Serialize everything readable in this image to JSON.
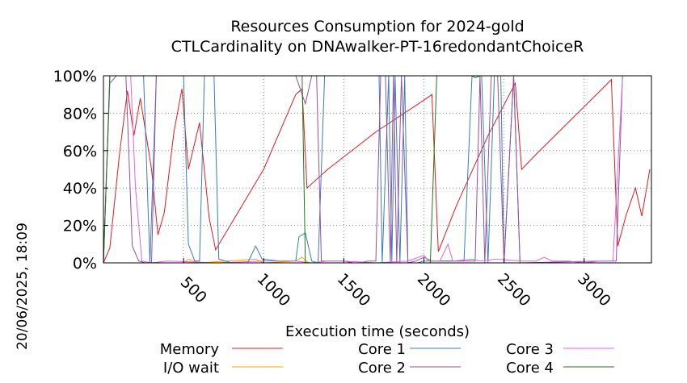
{
  "chart_data": {
    "type": "line",
    "title": "Resources Consumption for 2024-gold",
    "subtitle": "CTLCardinality on DNAwalker-PT-16redondantChoiceR",
    "xlabel": "Execution time (seconds)",
    "ylabel": "",
    "timestamp": "20/06/2025, 18:09",
    "xlim": [
      0,
      3420
    ],
    "ylim": [
      0,
      100
    ],
    "x_ticks": [
      500,
      1000,
      1500,
      2000,
      2500,
      3000
    ],
    "x_tick_labels": [
      "500",
      "1000",
      "1500",
      "2000",
      "2500",
      "3000"
    ],
    "y_ticks": [
      0,
      20,
      40,
      60,
      80,
      100
    ],
    "y_tick_labels": [
      "0%",
      "20%",
      "40%",
      "60%",
      "80%",
      "100%"
    ],
    "grid": true,
    "legend_position": "bottom",
    "series": [
      {
        "name": "Memory",
        "color": "#e41a1c",
        "points": [
          [
            0,
            0
          ],
          [
            40,
            8
          ],
          [
            100,
            58
          ],
          [
            150,
            92
          ],
          [
            190,
            68
          ],
          [
            230,
            88
          ],
          [
            300,
            50
          ],
          [
            340,
            15
          ],
          [
            380,
            27
          ],
          [
            440,
            70
          ],
          [
            490,
            93
          ],
          [
            530,
            50
          ],
          [
            600,
            75
          ],
          [
            660,
            24
          ],
          [
            700,
            7
          ],
          [
            1000,
            50
          ],
          [
            1200,
            90
          ],
          [
            1240,
            93
          ],
          [
            1270,
            40
          ],
          [
            1400,
            50
          ],
          [
            1700,
            70
          ],
          [
            2000,
            87
          ],
          [
            2050,
            90
          ],
          [
            2090,
            6
          ],
          [
            2200,
            30
          ],
          [
            2400,
            68
          ],
          [
            2570,
            96
          ],
          [
            2610,
            50
          ],
          [
            2700,
            58
          ],
          [
            2900,
            75
          ],
          [
            3100,
            92
          ],
          [
            3170,
            98
          ],
          [
            3210,
            9
          ],
          [
            3260,
            25
          ],
          [
            3320,
            40
          ],
          [
            3360,
            25
          ],
          [
            3410,
            50
          ]
        ]
      },
      {
        "name": "I/O wait",
        "color": "#ffa500",
        "points": [
          [
            0,
            0
          ],
          [
            100,
            0
          ],
          [
            500,
            0
          ],
          [
            530,
            2
          ],
          [
            560,
            1
          ],
          [
            600,
            0
          ],
          [
            950,
            2
          ],
          [
            1000,
            0
          ],
          [
            1200,
            1
          ],
          [
            1240,
            3
          ],
          [
            1280,
            0
          ],
          [
            3420,
            0
          ]
        ]
      },
      {
        "name": "Core 1",
        "color": "#377eb8",
        "points": [
          [
            0,
            0
          ],
          [
            40,
            100
          ],
          [
            250,
            100
          ],
          [
            290,
            0
          ],
          [
            330,
            100
          ],
          [
            500,
            100
          ],
          [
            530,
            10
          ],
          [
            570,
            1
          ],
          [
            600,
            1
          ],
          [
            630,
            100
          ],
          [
            690,
            100
          ],
          [
            720,
            2
          ],
          [
            800,
            0
          ],
          [
            900,
            0
          ],
          [
            950,
            9
          ],
          [
            990,
            2
          ],
          [
            1100,
            1
          ],
          [
            1200,
            1
          ],
          [
            1220,
            14
          ],
          [
            1260,
            16
          ],
          [
            1300,
            1
          ],
          [
            1340,
            0
          ],
          [
            1380,
            100
          ],
          [
            1720,
            100
          ],
          [
            1740,
            0
          ],
          [
            1780,
            100
          ],
          [
            1800,
            0
          ],
          [
            1820,
            100
          ],
          [
            1850,
            0
          ],
          [
            1880,
            100
          ],
          [
            1900,
            0
          ],
          [
            1960,
            0
          ],
          [
            2000,
            1
          ],
          [
            2040,
            1
          ],
          [
            2100,
            1
          ],
          [
            2250,
            1
          ],
          [
            2300,
            100
          ],
          [
            2360,
            100
          ],
          [
            2400,
            0
          ],
          [
            2440,
            100
          ],
          [
            2480,
            100
          ],
          [
            2500,
            0
          ],
          [
            2560,
            100
          ],
          [
            2600,
            0
          ],
          [
            3420,
            0
          ]
        ]
      },
      {
        "name": "Core 2",
        "color": "#984ea3",
        "points": [
          [
            0,
            0
          ],
          [
            40,
            96
          ],
          [
            80,
            100
          ],
          [
            140,
            100
          ],
          [
            180,
            9
          ],
          [
            220,
            1
          ],
          [
            260,
            0
          ],
          [
            300,
            0
          ],
          [
            330,
            100
          ],
          [
            1200,
            100
          ],
          [
            1260,
            85
          ],
          [
            1300,
            100
          ],
          [
            1330,
            100
          ],
          [
            1360,
            1
          ],
          [
            1420,
            1
          ],
          [
            1500,
            1
          ],
          [
            1560,
            0
          ],
          [
            1600,
            0
          ],
          [
            1650,
            1
          ],
          [
            1700,
            1
          ],
          [
            1730,
            100
          ],
          [
            1760,
            100
          ],
          [
            1790,
            0
          ],
          [
            1810,
            100
          ],
          [
            1830,
            0
          ],
          [
            1860,
            100
          ],
          [
            1900,
            0
          ],
          [
            1950,
            1
          ],
          [
            2000,
            3
          ],
          [
            2050,
            1
          ],
          [
            2100,
            1
          ],
          [
            2200,
            1
          ],
          [
            2240,
            1
          ],
          [
            2320,
            1
          ],
          [
            2350,
            100
          ],
          [
            2380,
            0
          ],
          [
            2420,
            100
          ],
          [
            2460,
            100
          ],
          [
            2500,
            0
          ],
          [
            2560,
            100
          ],
          [
            2600,
            0
          ],
          [
            3100,
            1
          ],
          [
            3200,
            1
          ],
          [
            3240,
            100
          ],
          [
            3420,
            100
          ]
        ]
      },
      {
        "name": "Core 3",
        "color": "#e066e0",
        "points": [
          [
            0,
            0
          ],
          [
            40,
            100
          ],
          [
            120,
            100
          ],
          [
            170,
            100
          ],
          [
            200,
            40
          ],
          [
            240,
            1
          ],
          [
            300,
            0
          ],
          [
            400,
            1
          ],
          [
            700,
            0
          ],
          [
            1000,
            1
          ],
          [
            1200,
            1
          ],
          [
            1300,
            0
          ],
          [
            1400,
            1
          ],
          [
            1500,
            1
          ],
          [
            1700,
            0
          ],
          [
            1900,
            1
          ],
          [
            2000,
            4
          ],
          [
            2030,
            1
          ],
          [
            2100,
            1
          ],
          [
            2150,
            10
          ],
          [
            2180,
            1
          ],
          [
            2300,
            2
          ],
          [
            2350,
            1
          ],
          [
            2450,
            2
          ],
          [
            2600,
            1
          ],
          [
            2700,
            1
          ],
          [
            2750,
            3
          ],
          [
            2800,
            1
          ],
          [
            2900,
            1
          ],
          [
            3000,
            0
          ],
          [
            3100,
            1
          ],
          [
            3180,
            1
          ],
          [
            3240,
            100
          ],
          [
            3420,
            100
          ]
        ]
      },
      {
        "name": "Core 4",
        "color": "#1b7a1b",
        "points": [
          [
            0,
            0
          ],
          [
            40,
            100
          ],
          [
            1240,
            100
          ],
          [
            1260,
            0
          ],
          [
            2040,
            0
          ],
          [
            2080,
            100
          ],
          [
            2300,
            100
          ],
          [
            2320,
            99
          ],
          [
            2350,
            100
          ],
          [
            3420,
            100
          ]
        ]
      }
    ]
  }
}
